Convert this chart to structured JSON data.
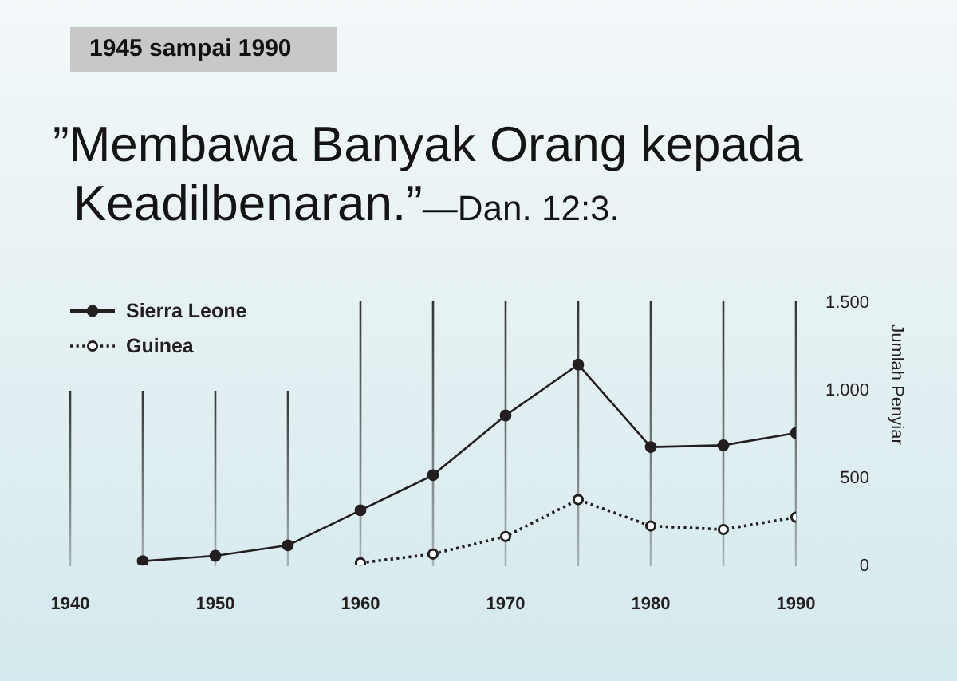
{
  "chart_data": {
    "type": "line",
    "title": "”Membawa Banyak Orang kepada Keadilbenaran.”—Dan. 12:3.",
    "subtitle": "1945 sampai 1990",
    "ylabel": "Jumlah Penyiar",
    "x": [
      1945,
      1950,
      1955,
      1960,
      1965,
      1970,
      1975,
      1980,
      1985,
      1990
    ],
    "series": [
      {
        "name": "Sierra Leone",
        "color": "#231f20",
        "values": [
          20,
          50,
          110,
          310,
          510,
          850,
          1140,
          670,
          680,
          750
        ],
        "line_style": "solid",
        "marker": "circle"
      },
      {
        "name": "Guinea",
        "color": "#231f20",
        "values": [
          null,
          null,
          null,
          10,
          60,
          160,
          370,
          220,
          200,
          270
        ],
        "line_style": "dotted",
        "marker": "circle"
      }
    ],
    "xlim": [
      1940,
      1990
    ],
    "xticks": [
      1940,
      {
        "value": 1945,
        "label": null
      },
      1950,
      {
        "value": 1955,
        "label": null
      },
      1960,
      {
        "value": 1965,
        "label": null
      },
      1970,
      {
        "value": 1975,
        "label": null
      },
      1980,
      {
        "value": 1985,
        "label": null
      },
      1990
    ],
    "ylim": [
      0,
      1500
    ],
    "yticks": [
      0,
      500,
      {
        "value": 1000,
        "label": "1.000"
      },
      {
        "value": 1500,
        "label": "1.500"
      }
    ],
    "grid": "x",
    "legend": "top left"
  }
}
